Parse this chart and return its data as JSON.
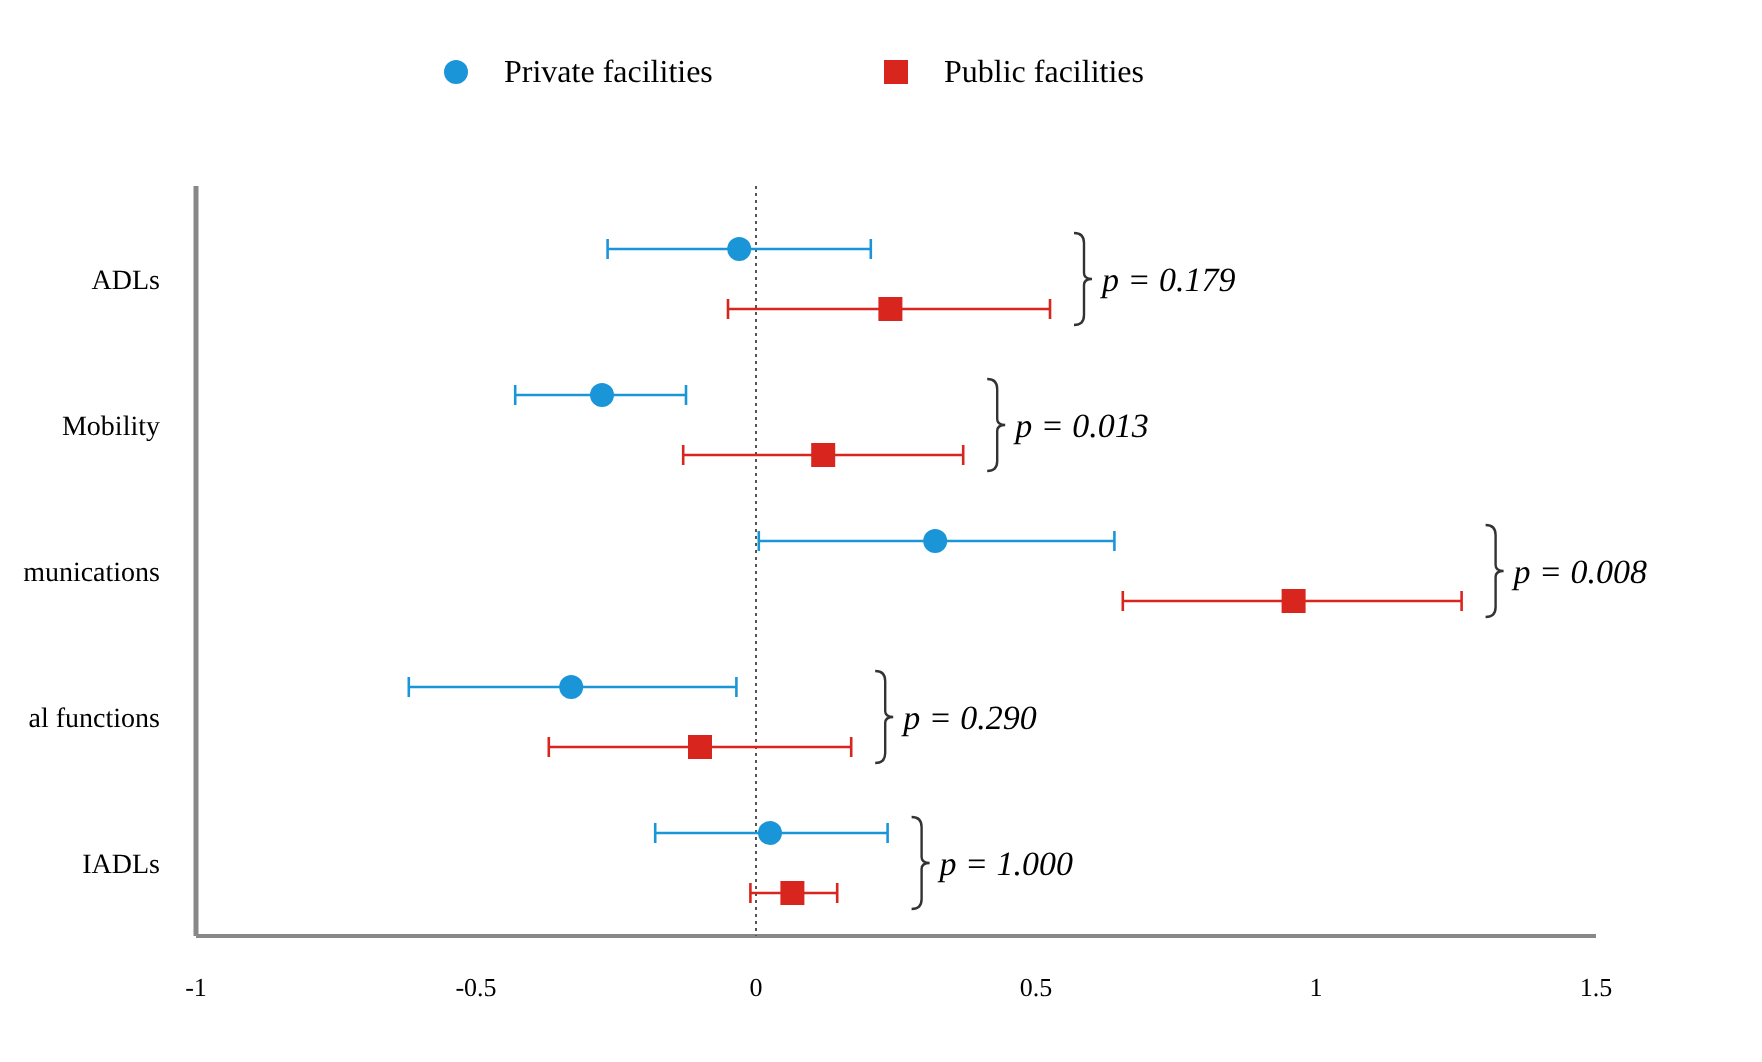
{
  "chart_data": {
    "type": "scatter",
    "orientation": "horizontal",
    "categories": [
      "ADLs",
      "Mobility",
      "munications",
      "al functions",
      "IADLs"
    ],
    "series": [
      {
        "name": "Private facilities",
        "color": "#1a96d8",
        "marker": "circle",
        "values": [
          -0.03,
          -0.275,
          0.32,
          -0.33,
          0.025
        ],
        "errors": [
          [
            -0.265,
            0.205
          ],
          [
            -0.43,
            -0.125
          ],
          [
            0.005,
            0.64
          ],
          [
            -0.62,
            -0.035
          ],
          [
            -0.18,
            0.235
          ]
        ]
      },
      {
        "name": "Public facilities",
        "color": "#d8261e",
        "marker": "square",
        "values": [
          0.24,
          0.12,
          0.96,
          -0.1,
          0.065
        ],
        "errors": [
          [
            -0.05,
            0.525
          ],
          [
            -0.13,
            0.37
          ],
          [
            0.655,
            1.26
          ],
          [
            -0.37,
            0.17
          ],
          [
            -0.01,
            0.145
          ]
        ]
      }
    ],
    "xlim": [
      -1,
      1.5
    ],
    "xticks": [
      -1,
      -0.5,
      0,
      0.5,
      1,
      1.5
    ],
    "ref_lines": [
      {
        "axis": "x",
        "value": 0,
        "line_style": "dotted",
        "color": "#555555"
      }
    ],
    "annotations": [
      "p = 0.179",
      "p = 0.013",
      "p = 0.008",
      "p = 0.290",
      "p = 1.000"
    ],
    "legend": "top",
    "grid": false
  }
}
